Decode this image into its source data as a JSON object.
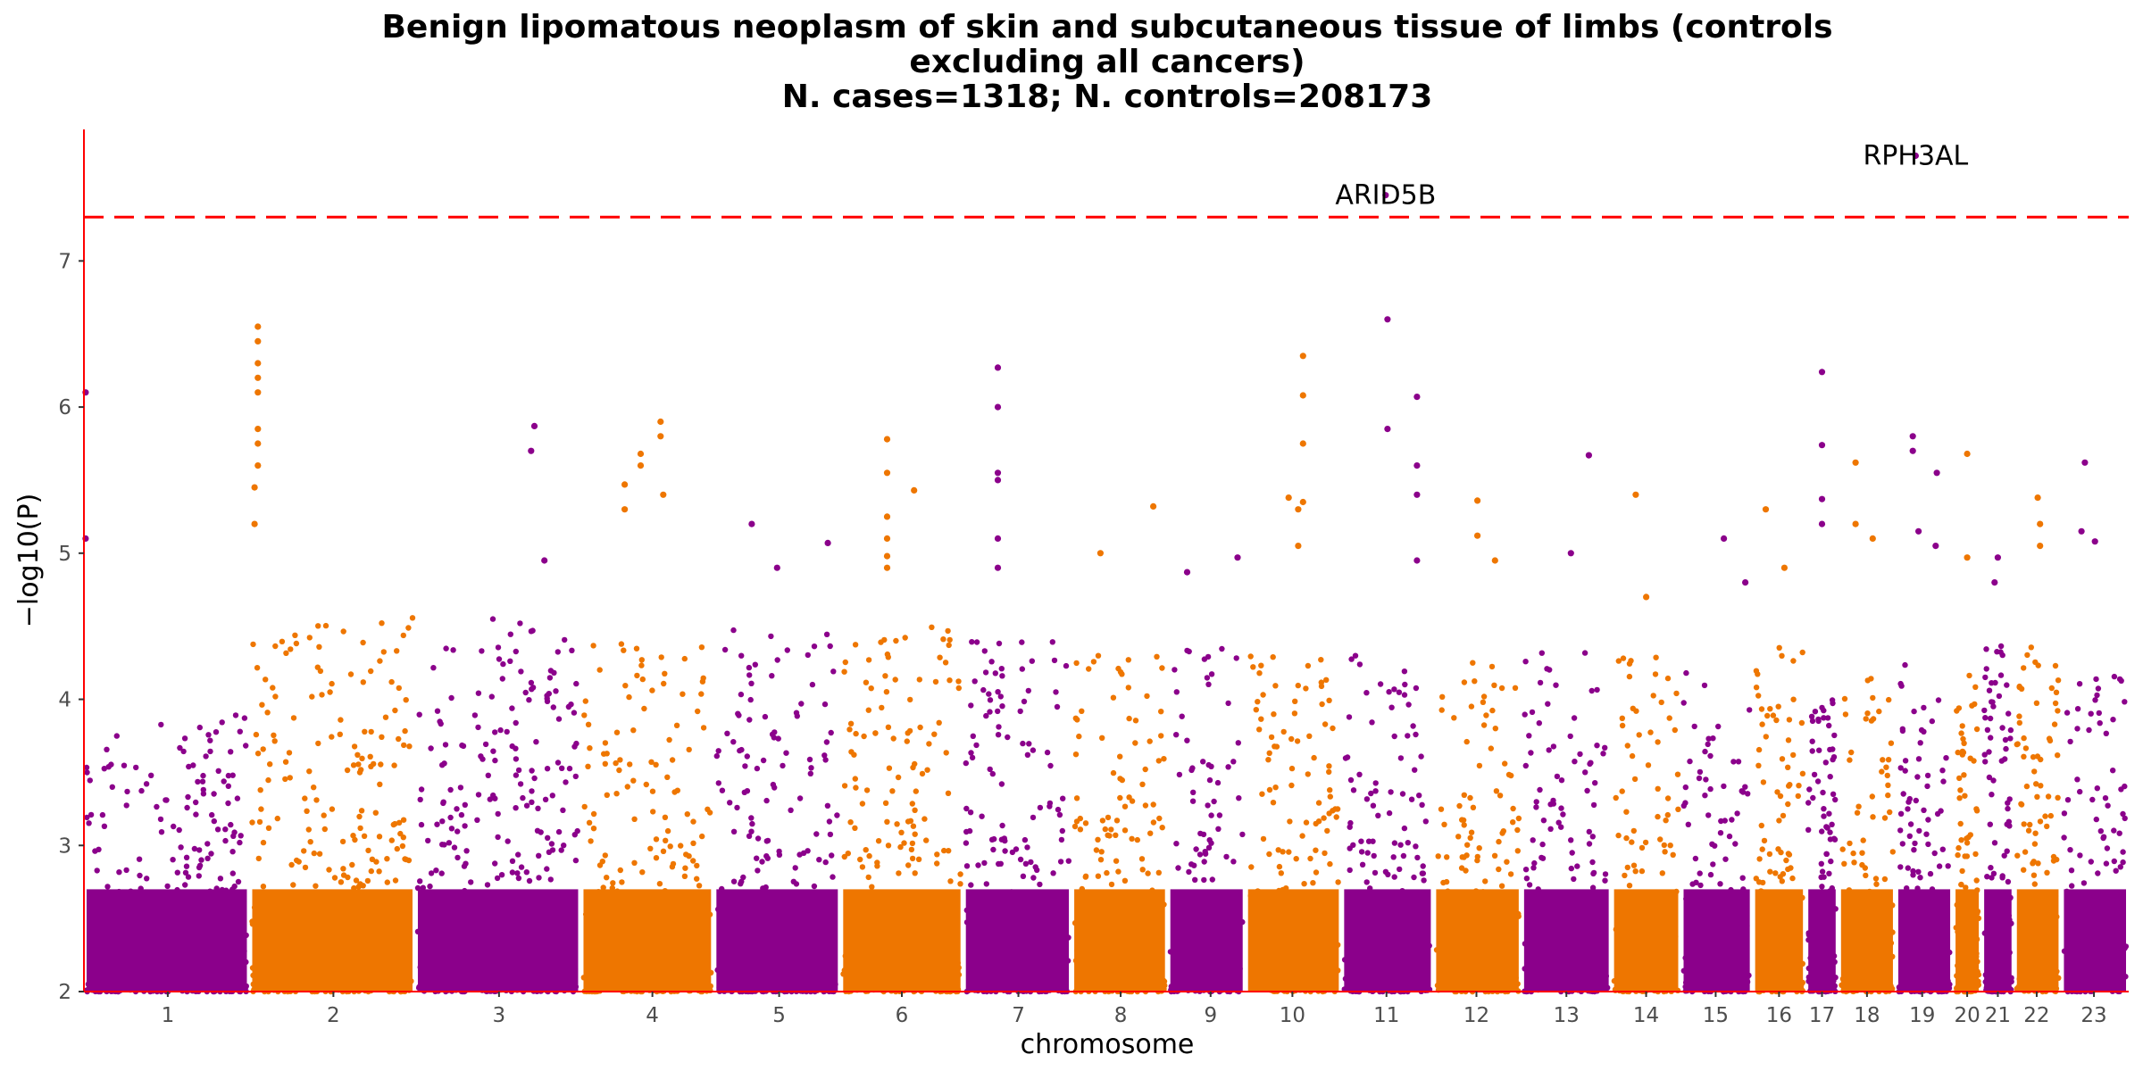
{
  "chart_data": {
    "type": "scatter",
    "title_lines": [
      "Benign lipomatous neoplasm of skin and subcutaneous tissue of limbs (controls",
      "excluding all cancers)",
      "N. cases=1318; N. controls=208173"
    ],
    "xlabel": "chromosome",
    "ylabel": "−log10(P)",
    "ylim": [
      2,
      7.9
    ],
    "yticks": [
      2,
      3,
      4,
      5,
      6,
      7
    ],
    "significance_line": 7.3,
    "colors": {
      "odd": "#8B008B",
      "even": "#EE7600",
      "threshold": "#FF0000",
      "axis": "#FF0000"
    },
    "chromosomes": [
      {
        "label": "1",
        "start": 0.0,
        "end": 0.081,
        "tick": 0.041,
        "base_max": 3.9,
        "peaks": [
          {
            "pos": 0.01,
            "y": 6.1
          },
          {
            "pos": 0.01,
            "y": 5.1
          }
        ]
      },
      {
        "label": "2",
        "start": 0.081,
        "end": 0.162,
        "tick": 0.122,
        "base_max": 4.6,
        "peaks": [
          {
            "pos": 0.05,
            "y": 6.55
          },
          {
            "pos": 0.05,
            "y": 6.45
          },
          {
            "pos": 0.05,
            "y": 6.3
          },
          {
            "pos": 0.05,
            "y": 6.2
          },
          {
            "pos": 0.05,
            "y": 6.1
          },
          {
            "pos": 0.05,
            "y": 5.85
          },
          {
            "pos": 0.05,
            "y": 5.75
          },
          {
            "pos": 0.05,
            "y": 5.6
          },
          {
            "pos": 0.03,
            "y": 5.45
          },
          {
            "pos": 0.03,
            "y": 5.2
          }
        ]
      },
      {
        "label": "3",
        "start": 0.162,
        "end": 0.243,
        "tick": 0.203,
        "base_max": 4.6,
        "peaks": [
          {
            "pos": 0.72,
            "y": 5.87
          },
          {
            "pos": 0.7,
            "y": 5.7
          },
          {
            "pos": 0.78,
            "y": 4.95
          }
        ]
      },
      {
        "label": "4",
        "start": 0.243,
        "end": 0.308,
        "tick": 0.278,
        "base_max": 4.4,
        "peaks": [
          {
            "pos": 0.6,
            "y": 5.9
          },
          {
            "pos": 0.6,
            "y": 5.8
          },
          {
            "pos": 0.45,
            "y": 5.68
          },
          {
            "pos": 0.45,
            "y": 5.6
          },
          {
            "pos": 0.33,
            "y": 5.47
          },
          {
            "pos": 0.33,
            "y": 5.3
          },
          {
            "pos": 0.62,
            "y": 5.4
          }
        ]
      },
      {
        "label": "5",
        "start": 0.308,
        "end": 0.37,
        "tick": 0.34,
        "base_max": 4.5,
        "peaks": [
          {
            "pos": 0.3,
            "y": 5.2
          },
          {
            "pos": 0.9,
            "y": 5.07
          },
          {
            "pos": 0.5,
            "y": 4.9
          }
        ]
      },
      {
        "label": "6",
        "start": 0.37,
        "end": 0.43,
        "tick": 0.4,
        "base_max": 4.5,
        "peaks": [
          {
            "pos": 0.38,
            "y": 5.78
          },
          {
            "pos": 0.38,
            "y": 5.55
          },
          {
            "pos": 0.38,
            "y": 5.25
          },
          {
            "pos": 0.38,
            "y": 5.1
          },
          {
            "pos": 0.38,
            "y": 4.98
          },
          {
            "pos": 0.38,
            "y": 4.9
          },
          {
            "pos": 0.6,
            "y": 5.43
          }
        ]
      },
      {
        "label": "7",
        "start": 0.43,
        "end": 0.483,
        "tick": 0.457,
        "base_max": 4.4,
        "peaks": [
          {
            "pos": 0.32,
            "y": 6.27
          },
          {
            "pos": 0.32,
            "y": 6.0
          },
          {
            "pos": 0.32,
            "y": 5.55
          },
          {
            "pos": 0.32,
            "y": 5.5
          },
          {
            "pos": 0.32,
            "y": 5.1
          },
          {
            "pos": 0.32,
            "y": 4.9
          }
        ]
      },
      {
        "label": "8",
        "start": 0.483,
        "end": 0.53,
        "tick": 0.507,
        "base_max": 4.3,
        "peaks": [
          {
            "pos": 0.85,
            "y": 5.32
          },
          {
            "pos": 0.3,
            "y": 5.0
          }
        ]
      },
      {
        "label": "9",
        "start": 0.53,
        "end": 0.568,
        "tick": 0.551,
        "base_max": 4.4,
        "peaks": [
          {
            "pos": 0.9,
            "y": 4.97
          },
          {
            "pos": 0.25,
            "y": 4.87
          }
        ]
      },
      {
        "label": "10",
        "start": 0.568,
        "end": 0.615,
        "tick": 0.591,
        "base_max": 4.4,
        "peaks": [
          {
            "pos": 0.6,
            "y": 6.35
          },
          {
            "pos": 0.6,
            "y": 6.08
          },
          {
            "pos": 0.6,
            "y": 5.75
          },
          {
            "pos": 0.6,
            "y": 5.35
          },
          {
            "pos": 0.55,
            "y": 5.3
          },
          {
            "pos": 0.55,
            "y": 5.05
          },
          {
            "pos": 0.45,
            "y": 5.38
          }
        ]
      },
      {
        "label": "11",
        "start": 0.615,
        "end": 0.66,
        "tick": 0.637,
        "base_max": 4.3,
        "peaks": [
          {
            "pos": 0.48,
            "y": 7.45
          },
          {
            "pos": 0.5,
            "y": 6.6
          },
          {
            "pos": 0.82,
            "y": 6.07
          },
          {
            "pos": 0.82,
            "y": 5.6
          },
          {
            "pos": 0.82,
            "y": 5.4
          },
          {
            "pos": 0.5,
            "y": 5.85
          },
          {
            "pos": 0.82,
            "y": 4.95
          }
        ]
      },
      {
        "label": "12",
        "start": 0.66,
        "end": 0.703,
        "tick": 0.681,
        "base_max": 4.3,
        "peaks": [
          {
            "pos": 0.5,
            "y": 5.36
          },
          {
            "pos": 0.5,
            "y": 5.12
          },
          {
            "pos": 0.7,
            "y": 4.95
          }
        ]
      },
      {
        "label": "13",
        "start": 0.703,
        "end": 0.747,
        "tick": 0.725,
        "base_max": 4.4,
        "peaks": [
          {
            "pos": 0.75,
            "y": 5.67
          },
          {
            "pos": 0.55,
            "y": 5.0
          }
        ]
      },
      {
        "label": "14",
        "start": 0.747,
        "end": 0.781,
        "tick": 0.764,
        "base_max": 4.3,
        "peaks": [
          {
            "pos": 0.35,
            "y": 5.4
          },
          {
            "pos": 0.5,
            "y": 4.7
          }
        ]
      },
      {
        "label": "15",
        "start": 0.781,
        "end": 0.816,
        "tick": 0.798,
        "base_max": 4.2,
        "peaks": [
          {
            "pos": 0.6,
            "y": 5.1
          },
          {
            "pos": 0.9,
            "y": 4.8
          }
        ]
      },
      {
        "label": "16",
        "start": 0.816,
        "end": 0.842,
        "tick": 0.829,
        "base_max": 4.4,
        "peaks": [
          {
            "pos": 0.25,
            "y": 5.3
          },
          {
            "pos": 0.6,
            "y": 4.9
          }
        ]
      },
      {
        "label": "17",
        "start": 0.842,
        "end": 0.858,
        "tick": 0.85,
        "base_max": 4.0,
        "peaks": [
          {
            "pos": 0.5,
            "y": 6.24
          },
          {
            "pos": 0.5,
            "y": 5.74
          },
          {
            "pos": 0.5,
            "y": 5.37
          },
          {
            "pos": 0.5,
            "y": 5.2
          }
        ]
      },
      {
        "label": "18",
        "start": 0.858,
        "end": 0.886,
        "tick": 0.872,
        "base_max": 4.2,
        "peaks": [
          {
            "pos": 0.3,
            "y": 5.62
          },
          {
            "pos": 0.3,
            "y": 5.2
          },
          {
            "pos": 0.6,
            "y": 5.1
          }
        ]
      },
      {
        "label": "19",
        "start": 0.886,
        "end": 0.914,
        "tick": 0.899,
        "base_max": 4.3,
        "peaks": [
          {
            "pos": 0.35,
            "y": 7.72
          },
          {
            "pos": 0.3,
            "y": 5.8
          },
          {
            "pos": 0.3,
            "y": 5.7
          },
          {
            "pos": 0.72,
            "y": 5.55
          },
          {
            "pos": 0.4,
            "y": 5.15
          },
          {
            "pos": 0.7,
            "y": 5.05
          }
        ]
      },
      {
        "label": "20",
        "start": 0.914,
        "end": 0.928,
        "tick": 0.921,
        "base_max": 4.2,
        "peaks": [
          {
            "pos": 0.5,
            "y": 5.68
          },
          {
            "pos": 0.5,
            "y": 4.97
          }
        ]
      },
      {
        "label": "21",
        "start": 0.928,
        "end": 0.944,
        "tick": 0.936,
        "base_max": 4.4,
        "peaks": [
          {
            "pos": 0.5,
            "y": 4.97
          },
          {
            "pos": 0.4,
            "y": 4.8
          }
        ]
      },
      {
        "label": "22",
        "start": 0.944,
        "end": 0.967,
        "tick": 0.955,
        "base_max": 4.4,
        "peaks": [
          {
            "pos": 0.5,
            "y": 5.38
          },
          {
            "pos": 0.55,
            "y": 5.2
          },
          {
            "pos": 0.55,
            "y": 5.05
          }
        ]
      },
      {
        "label": "23",
        "start": 0.967,
        "end": 1.0,
        "tick": 0.983,
        "base_max": 4.2,
        "peaks": [
          {
            "pos": 0.35,
            "y": 5.62
          },
          {
            "pos": 0.3,
            "y": 5.15
          },
          {
            "pos": 0.5,
            "y": 5.08
          }
        ]
      }
    ],
    "gene_annotations": [
      {
        "text": "RPH3AL",
        "chrom_index": 18,
        "pos": 0.35,
        "y": 7.72
      },
      {
        "text": "ARID5B",
        "chrom_index": 10,
        "pos": 0.48,
        "y": 7.45
      }
    ]
  }
}
